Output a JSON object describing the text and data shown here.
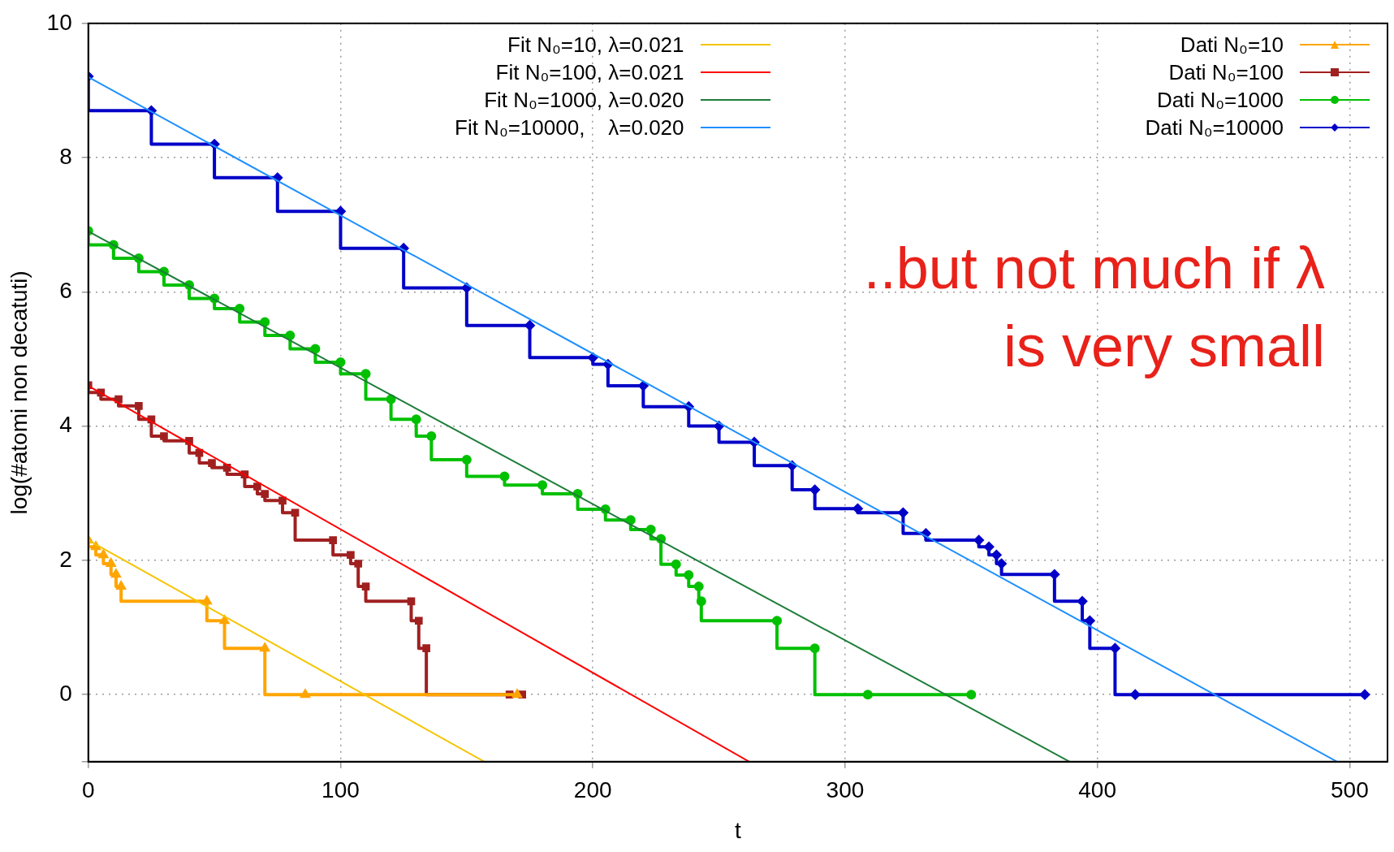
{
  "chart_data": {
    "type": "line",
    "xlabel": "t",
    "ylabel": "log(#atomi non decatuti)",
    "xlim": [
      0,
      515
    ],
    "ylim": [
      -1,
      10
    ],
    "xticks": [
      0,
      100,
      200,
      300,
      400,
      500
    ],
    "yticks": [
      {
        "value": -1,
        "label": null
      },
      0,
      2,
      4,
      6,
      8,
      10
    ],
    "grid": true,
    "legend": "top",
    "annotations": [
      "..but not much if λ\nis very small"
    ],
    "series": [
      {
        "name": "Fit N₀=10, λ=0.021",
        "color": "#f5c400",
        "type": "line",
        "marker": "none",
        "x": [
          0,
          157
        ],
        "values": [
          2.3,
          -1
        ]
      },
      {
        "name": "Fit N₀=100, λ=0.021",
        "color": "#ff0000",
        "type": "line",
        "marker": "none",
        "x": [
          0,
          262
        ],
        "values": [
          4.6,
          -1
        ]
      },
      {
        "name": "Fit N₀=1000, λ=0.020",
        "color": "#1e7d3a",
        "type": "line",
        "marker": "none",
        "x": [
          0,
          389
        ],
        "values": [
          6.9,
          -1
        ]
      },
      {
        "name": "Fit N₀=10000,    λ=0.020",
        "color": "#1e90ff",
        "type": "line",
        "marker": "none",
        "x": [
          0,
          495
        ],
        "values": [
          9.2,
          -1
        ]
      },
      {
        "name": "Dati N₀=10",
        "color": "#ffa500",
        "type": "step",
        "marker": "triangle",
        "x": [
          0,
          3,
          6,
          9,
          11,
          13,
          47,
          54,
          70,
          86,
          170
        ],
        "values": [
          2.3,
          2.2,
          2.08,
          1.95,
          1.79,
          1.61,
          1.39,
          1.1,
          0.69,
          0,
          0
        ]
      },
      {
        "name": "Dati N₀=100",
        "color": "#a02020",
        "type": "step",
        "marker": "square",
        "x": [
          0,
          5,
          12,
          20,
          25,
          30,
          40,
          44,
          49,
          55,
          62,
          67,
          70,
          77,
          82,
          97,
          104,
          107,
          110,
          128,
          131,
          134,
          167,
          172
        ],
        "values": [
          4.61,
          4.5,
          4.4,
          4.3,
          4.1,
          3.85,
          3.78,
          3.6,
          3.45,
          3.38,
          3.28,
          3.1,
          2.99,
          2.89,
          2.71,
          2.3,
          2.08,
          1.95,
          1.61,
          1.39,
          1.1,
          0.69,
          0,
          0
        ]
      },
      {
        "name": "Dati N₀=1000",
        "color": "#00c000",
        "type": "step",
        "marker": "circle",
        "x": [
          0,
          10,
          20,
          30,
          40,
          50,
          60,
          70,
          80,
          90,
          100,
          110,
          120,
          130,
          136,
          150,
          165,
          180,
          194,
          205,
          215,
          223,
          227,
          233,
          238,
          242,
          243,
          273,
          288,
          309,
          350
        ],
        "values": [
          6.91,
          6.7,
          6.5,
          6.3,
          6.1,
          5.9,
          5.75,
          5.55,
          5.35,
          5.15,
          4.95,
          4.78,
          4.4,
          4.1,
          3.85,
          3.5,
          3.25,
          3.12,
          2.99,
          2.76,
          2.6,
          2.46,
          2.32,
          1.94,
          1.78,
          1.61,
          1.39,
          1.1,
          0.69,
          0,
          0
        ]
      },
      {
        "name": "Dati N₀=10000",
        "color": "#0000c8",
        "type": "step",
        "marker": "diamond",
        "x": [
          0,
          25,
          50,
          75,
          100,
          125,
          150,
          175,
          200,
          206,
          220,
          238,
          250,
          264,
          279,
          288,
          305,
          323,
          332,
          353,
          357,
          360,
          362,
          383,
          394,
          397,
          407,
          415,
          506
        ],
        "values": [
          9.21,
          8.7,
          8.2,
          7.7,
          7.2,
          6.65,
          6.06,
          5.5,
          5.02,
          4.92,
          4.6,
          4.29,
          4,
          3.76,
          3.41,
          3.05,
          2.77,
          2.71,
          2.4,
          2.3,
          2.2,
          2.08,
          1.95,
          1.79,
          1.39,
          1.1,
          0.69,
          0,
          0
        ]
      }
    ]
  }
}
